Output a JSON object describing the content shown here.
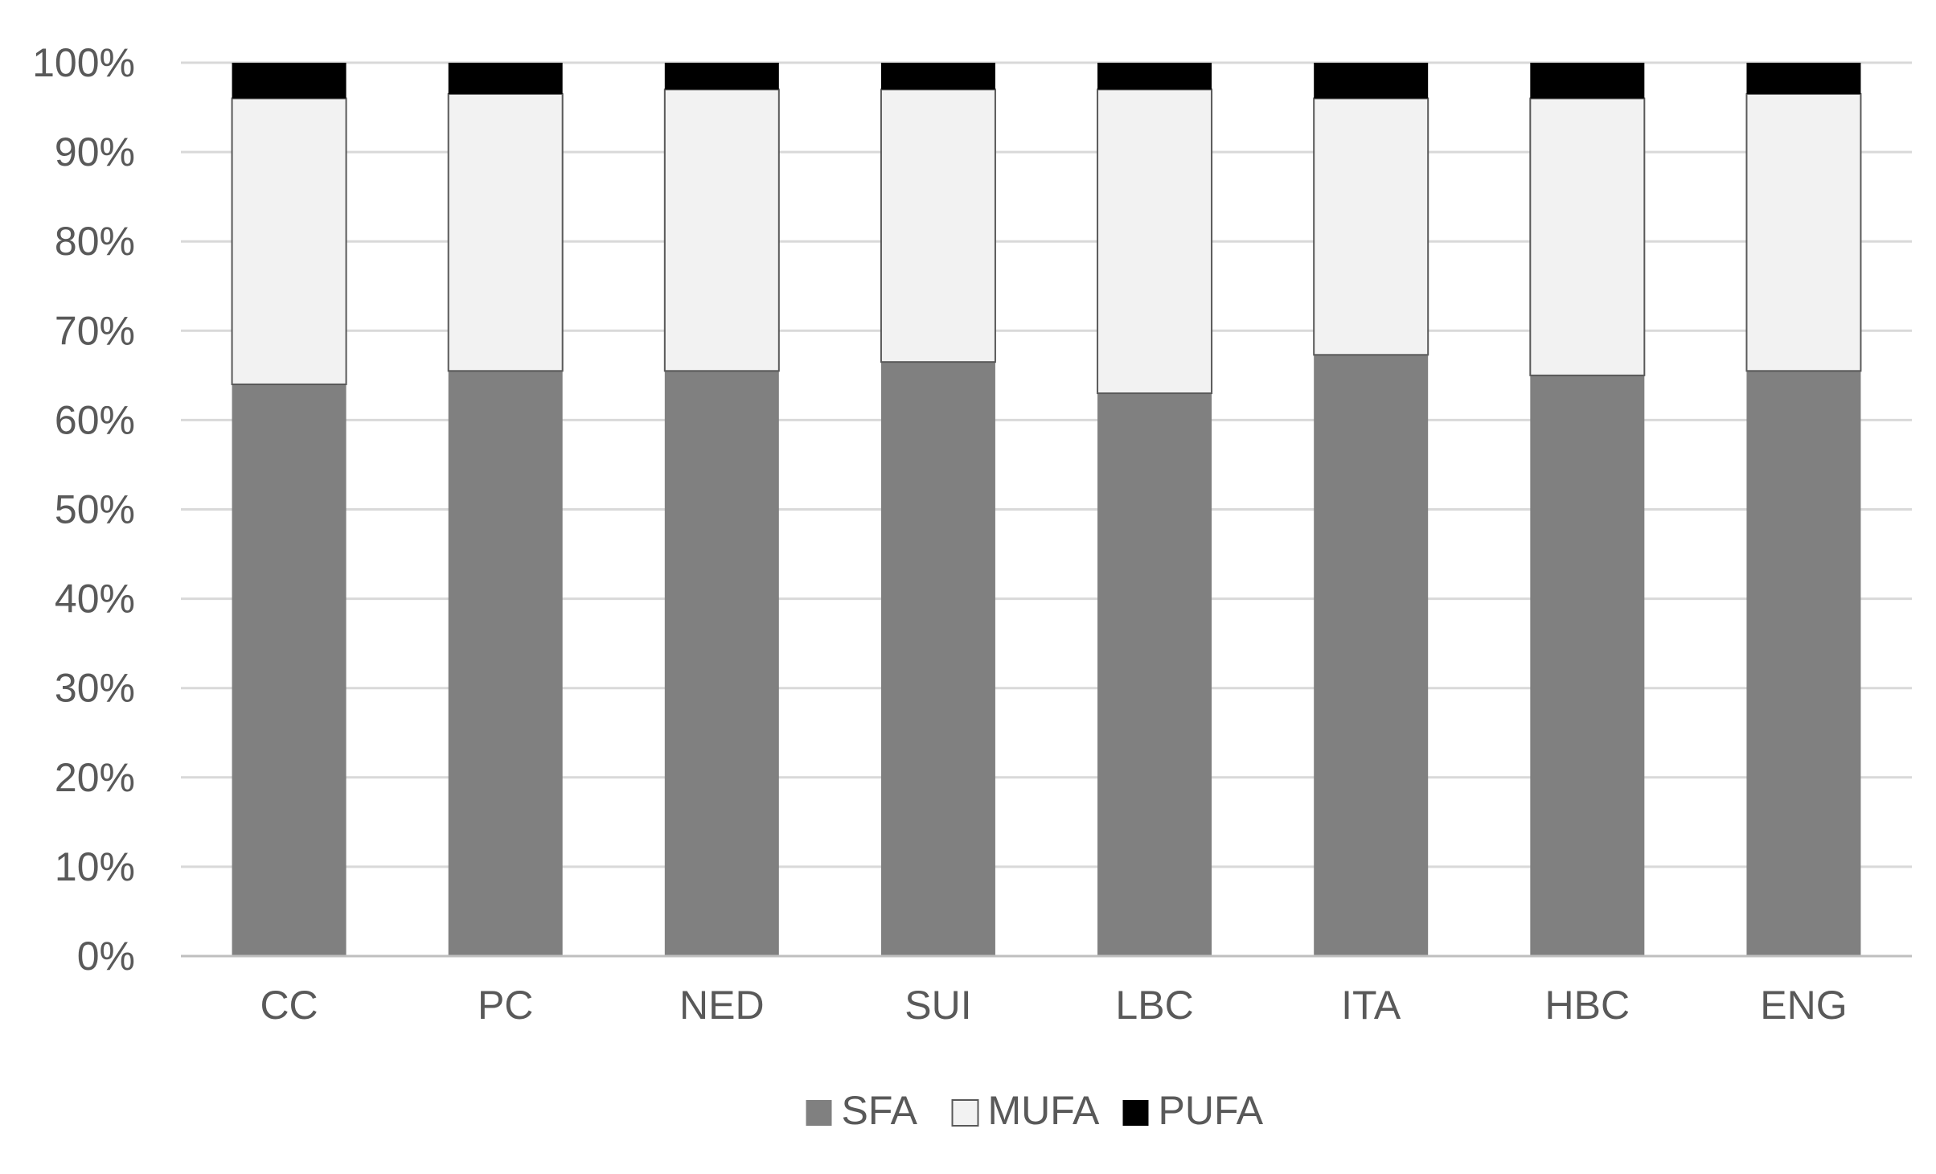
{
  "chart_data": {
    "type": "bar",
    "stacked": true,
    "percent_stacked": true,
    "title": "",
    "xlabel": "",
    "ylabel": "",
    "categories": [
      "CC",
      "PC",
      "NED",
      "SUI",
      "LBC",
      "ITA",
      "HBC",
      "ENG"
    ],
    "series": [
      {
        "name": "SFA",
        "values": [
          64.0,
          65.5,
          65.5,
          66.5,
          63.0,
          67.3,
          65.0,
          65.5
        ],
        "color": "#808080"
      },
      {
        "name": "MUFA",
        "values": [
          32.0,
          31.0,
          31.5,
          30.5,
          34.0,
          28.7,
          31.0,
          31.0
        ],
        "color": "#f2f2f2"
      },
      {
        "name": "PUFA",
        "values": [
          4.0,
          3.5,
          3.0,
          3.0,
          3.0,
          4.0,
          4.0,
          3.5
        ],
        "color": "#000000"
      }
    ],
    "ylim": [
      0,
      100
    ],
    "yticks": [
      "0%",
      "10%",
      "20%",
      "30%",
      "40%",
      "50%",
      "60%",
      "70%",
      "80%",
      "90%",
      "100%"
    ],
    "grid": true,
    "grid_color": "#d9d9d9",
    "axis_color": "#bfbfbf",
    "bar_outline": "#595959",
    "legend_position": "bottom"
  }
}
